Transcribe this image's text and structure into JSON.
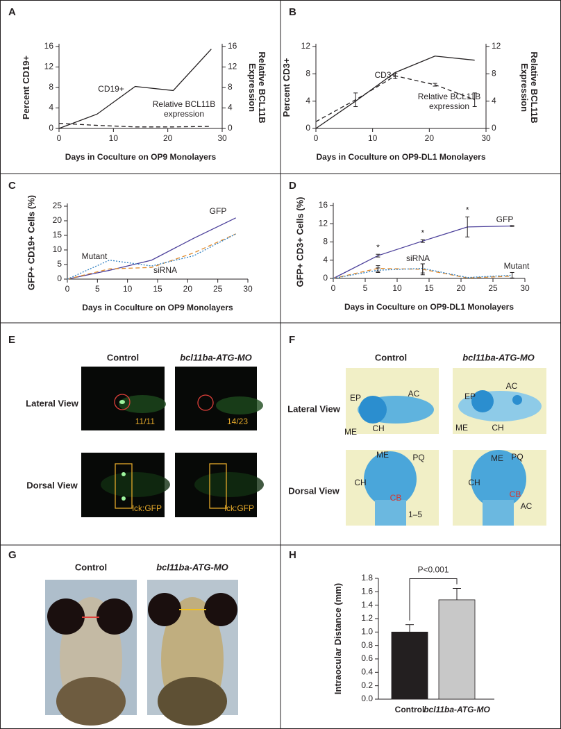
{
  "chart_data": [
    {
      "type": "line",
      "label": "A",
      "x_label": "Days in Coculture on OP9 Monolayers",
      "y_label": "Percent CD19+",
      "y2_label": "Relative BCL11B Expression",
      "xlim": [
        0,
        30
      ],
      "xticks": [
        0,
        10,
        20,
        30
      ],
      "ylim": [
        0,
        16
      ],
      "yticks": [
        0,
        4,
        8,
        12,
        16
      ],
      "y2lim": [
        0,
        16
      ],
      "y2ticks": [
        0,
        4,
        8,
        12,
        16
      ],
      "series": [
        {
          "name": "CD19+",
          "color": "#231f20",
          "dash": "solid",
          "x": [
            0,
            7,
            14,
            21,
            28
          ],
          "values": [
            0,
            2.8,
            8.2,
            7.4,
            15.5
          ]
        },
        {
          "name": "Relative BCL11B expression",
          "color": "#231f20",
          "dash": "dashed",
          "axis": "y2",
          "x": [
            0,
            7,
            14,
            21,
            28
          ],
          "values": [
            1,
            0.6,
            0.3,
            0.3,
            0.4
          ]
        }
      ]
    },
    {
      "type": "line",
      "label": "B",
      "x_label": "Days in Coculture on OP9-DL1 Monolayers",
      "y_label": "Percent CD3+",
      "y2_label": "Relative BCL11B Expression",
      "xlim": [
        0,
        30
      ],
      "xticks": [
        0,
        10,
        20,
        30
      ],
      "ylim": [
        0,
        12
      ],
      "yticks": [
        0,
        4,
        8,
        12
      ],
      "y2lim": [
        0,
        12
      ],
      "y2ticks": [
        0,
        4,
        8,
        12
      ],
      "series": [
        {
          "name": "CD3+",
          "color": "#231f20",
          "dash": "solid",
          "x": [
            0,
            7,
            14,
            21,
            28
          ],
          "values": [
            0,
            4,
            8.2,
            10.6,
            10
          ]
        },
        {
          "name": "Relative BCL11B expression",
          "color": "#231f20",
          "dash": "dashed",
          "axis": "y2",
          "x": [
            0,
            7,
            14,
            21,
            28
          ],
          "values": [
            1,
            4.2,
            7.7,
            6.4,
            4.2
          ],
          "errors": [
            null,
            1,
            0.4,
            0.2,
            1
          ]
        }
      ]
    },
    {
      "type": "line",
      "label": "C",
      "x_label": "Days in Coculture on OP9 Monolayers",
      "y_label": "GFP+ CD19+ Cells (%)",
      "xlim": [
        0,
        30
      ],
      "xticks": [
        0,
        5,
        10,
        15,
        20,
        25,
        30
      ],
      "ylim": [
        0,
        25
      ],
      "yticks": [
        0,
        5,
        10,
        15,
        20,
        25
      ],
      "series": [
        {
          "name": "GFP",
          "color": "#4b3f9a",
          "dash": "solid",
          "x": [
            0,
            7,
            14,
            21,
            28
          ],
          "values": [
            0,
            3,
            6.5,
            14,
            21
          ]
        },
        {
          "name": "siRNA",
          "color": "#e08a2c",
          "dash": "dashed",
          "x": [
            0,
            7,
            14,
            21,
            28
          ],
          "values": [
            0,
            3.5,
            4,
            9,
            15.5
          ]
        },
        {
          "name": "Mutant",
          "color": "#2f7fc1",
          "dash": "dotted",
          "x": [
            0,
            7,
            14,
            21,
            28
          ],
          "values": [
            0,
            6.5,
            4.5,
            8,
            15.5
          ]
        }
      ]
    },
    {
      "type": "line",
      "label": "D",
      "x_label": "Days in Coculture on OP9-DL1 Monolayers",
      "y_label": "GFP+ CD3+ Cells (%)",
      "xlim": [
        0,
        30
      ],
      "xticks": [
        0,
        5,
        10,
        15,
        20,
        25,
        30
      ],
      "ylim": [
        0,
        16
      ],
      "yticks": [
        0,
        4,
        8,
        12,
        16
      ],
      "annotations": [
        "*",
        "*",
        "*"
      ],
      "series": [
        {
          "name": "GFP",
          "color": "#4b3f9a",
          "dash": "solid",
          "x": [
            0,
            7,
            14,
            21,
            28
          ],
          "values": [
            0,
            5,
            8.2,
            11.3,
            11.5
          ],
          "errors": [
            null,
            0.3,
            0.3,
            2.2,
            0.1
          ]
        },
        {
          "name": "siRNA",
          "color": "#e08a2c",
          "dash": "dashed",
          "x": [
            0,
            7,
            14,
            21,
            28
          ],
          "values": [
            0,
            2.2,
            2,
            0.1,
            0.5
          ],
          "errors": [
            null,
            0.6,
            1.2,
            null,
            null
          ]
        },
        {
          "name": "Mutant",
          "color": "#2f7fc1",
          "dash": "dotted",
          "x": [
            0,
            7,
            14,
            21,
            28
          ],
          "values": [
            0,
            1.8,
            2.2,
            0.2,
            0.7
          ],
          "errors": [
            null,
            0.5,
            1,
            null,
            0.6
          ]
        }
      ]
    },
    {
      "type": "bar",
      "label": "H",
      "y_label": "Intraocular Distance (mm)",
      "annotation": "P<0.001",
      "categories": [
        "Control",
        "bcl11ba-ATG-MO"
      ],
      "values": [
        1.0,
        1.48
      ],
      "errors": [
        0.11,
        0.17
      ],
      "colors": [
        "#231f20",
        "#c8c8c8"
      ],
      "ylim": [
        0,
        1.8
      ],
      "yticks": [
        {
          "value": 0,
          "label": "0.0"
        },
        0.2,
        0.4,
        0.6,
        0.8,
        {
          "value": 1,
          "label": "1.0"
        },
        1.2,
        1.4,
        1.6,
        1.8
      ]
    }
  ],
  "image_panels": [
    {
      "label": "E",
      "columns": [
        "Control",
        "bcl11ba-ATG-MO"
      ],
      "rows": [
        "Lateral View",
        "Dorsal View"
      ],
      "image_labels": [
        [
          "11/11"
        ],
        [
          "14/23"
        ],
        [
          "lck:GFP"
        ],
        [
          "lck:GFP"
        ]
      ]
    },
    {
      "label": "F",
      "columns": [
        "Control",
        "bcl11ba-ATG-MO"
      ],
      "rows": [
        "Lateral View",
        "Dorsal View"
      ],
      "image_labels": [
        [
          "EP",
          "AC",
          "ME",
          "CH"
        ],
        [
          "EP",
          "AC",
          "ME",
          "CH"
        ],
        [
          "ME",
          "CH",
          "PQ",
          "CB",
          "1–5"
        ],
        [
          "ME",
          "PQ",
          "CH",
          "CB",
          "AC"
        ]
      ]
    },
    {
      "label": "G",
      "columns": [
        "Control",
        "bcl11ba-ATG-MO"
      ]
    }
  ]
}
